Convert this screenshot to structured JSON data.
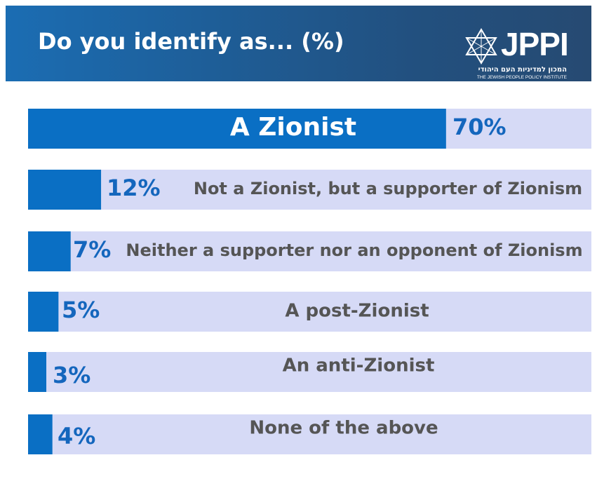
{
  "header": {
    "title": "Do you identify as... (%)",
    "logo_text": "JPPI",
    "logo_hebrew": "המכון למדיניות העם היהודי",
    "logo_subtitle": "THE JEWISH PEOPLE POLICY INSTITUTE"
  },
  "colors": {
    "header_bg": "#1f5f9b",
    "bar_fill": "#0a6fc4",
    "track": "#d6daf6",
    "value_text": "#1466bd",
    "label_text": "#555555"
  },
  "chart_data": {
    "type": "bar",
    "orientation": "horizontal",
    "title": "Do you identify as... (%)",
    "unit": "%",
    "xlim": [
      0,
      100
    ],
    "categories": [
      "A Zionist",
      "Not a Zionist, but a supporter of Zionism",
      "Neither a supporter nor an opponent of Zionism",
      "A post-Zionist",
      "An anti-Zionist",
      "None of the above"
    ],
    "values": [
      70,
      12,
      7,
      5,
      3,
      4
    ],
    "value_labels": [
      "70%",
      "12%",
      "7%",
      "5%",
      "3%",
      "4%"
    ]
  }
}
